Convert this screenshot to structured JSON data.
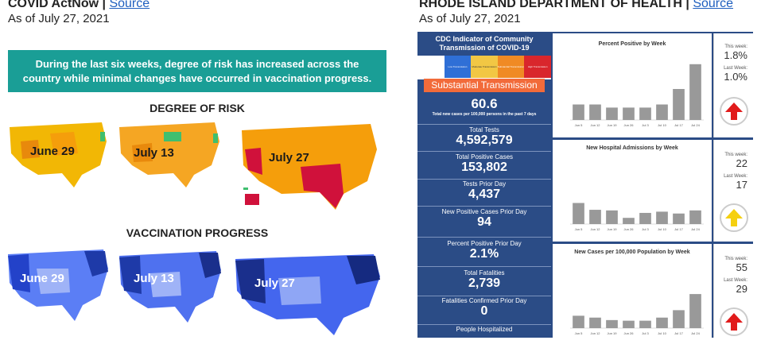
{
  "left": {
    "header": {
      "title": "COVID ActNow | ",
      "link": "Source"
    },
    "date": "As of July 27, 2021",
    "banner_line1": "During the last six weeks, degree of risk has increased across the",
    "banner_line2": "country while minimal changes have occurred in vaccination progress.",
    "risk_title": "DEGREE OF RISK",
    "vacc_title": "VACCINATION PROGRESS",
    "risk_maps": [
      "June 29",
      "July 13",
      "July 27"
    ],
    "vacc_maps": [
      "June 29",
      "July 13",
      "July 27"
    ]
  },
  "right": {
    "header": {
      "title": "RHODE ISLAND DEPARTMENT OF HEALTH | ",
      "link": "Source"
    },
    "date": "As of July 27, 2021",
    "cdc_title_1": "CDC Indicator of Community",
    "cdc_title_2": "Transmission of COVID-19",
    "cdc_levels": [
      "Low Transmission",
      "Moderate Transmission",
      "Substantial Transmission",
      "High Transmission"
    ],
    "transmission": "Substantial Transmission",
    "stats": [
      {
        "value": "60.6",
        "label": "Total new cases per 100,000 persons in the past 7 days"
      },
      {
        "label": "Total Tests",
        "value": "4,592,579"
      },
      {
        "label": "Total Positive Cases",
        "value": "153,802"
      },
      {
        "label": "Tests Prior Day",
        "value": "4,437"
      },
      {
        "label": "New Positive Cases Prior Day",
        "value": "94"
      },
      {
        "label": "Percent Positive Prior Day",
        "value": "2.1%"
      },
      {
        "label": "Total Fatalities",
        "value": "2,739"
      },
      {
        "label": "Fatalities Confirmed Prior Day",
        "value": "0"
      },
      {
        "label": "People Hospitalized",
        "value": ""
      }
    ],
    "charts": [
      {
        "title": "Percent Positive by Week",
        "this_week": "1.8%",
        "last_week": "1.0%",
        "trend": "up-red",
        "categories": [
          "Jun 5",
          "Jun 12",
          "Jun 19",
          "Jun 26",
          "Jul 3",
          "Jul 10",
          "Jul 17",
          "Jul 24"
        ],
        "values": [
          0.5,
          0.5,
          0.4,
          0.4,
          0.4,
          0.5,
          1.0,
          1.8
        ],
        "ymax": 2
      },
      {
        "title": "New Hospital Admissions by Week",
        "this_week": "22",
        "last_week": "17",
        "trend": "up-yellow",
        "categories": [
          "Jun 5",
          "Jun 12",
          "Jun 19",
          "Jun 26",
          "Jul 3",
          "Jul 10",
          "Jul 17",
          "Jul 24"
        ],
        "values": [
          34,
          23,
          22,
          10,
          18,
          20,
          17,
          22
        ],
        "ymax": 100
      },
      {
        "title": "New Cases per 100,000 Population by Week",
        "this_week": "55",
        "last_week": "29",
        "trend": "up-red",
        "categories": [
          "Jun 5",
          "Jun 12",
          "Jun 19",
          "Jun 26",
          "Jul 3",
          "Jul 10",
          "Jul 17",
          "Jul 24"
        ],
        "values": [
          20,
          17,
          13,
          12,
          12,
          17,
          29,
          55
        ],
        "ymax": 100
      }
    ],
    "this_week_label": "This week:",
    "last_week_label": "Last Week:"
  },
  "colors": {
    "teal": "#1a9e96",
    "risk_orange": "#f59e0b",
    "risk_red": "#d0113b",
    "vacc_blue": "#3b5bdb",
    "dash_blue": "#2b4c86"
  }
}
